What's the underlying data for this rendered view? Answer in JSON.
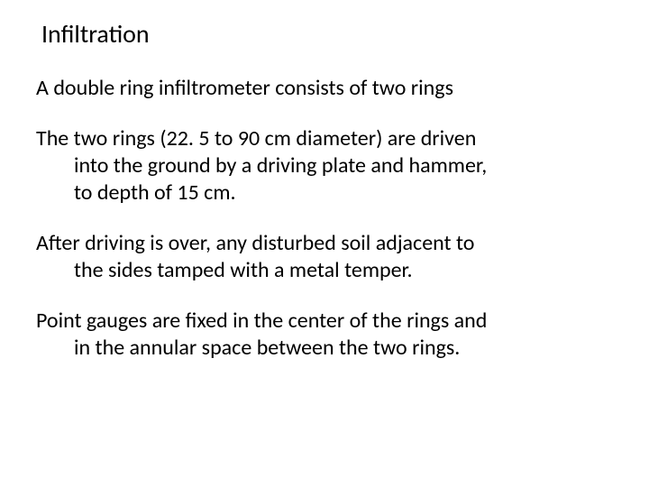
{
  "slide": {
    "title": "Infiltration",
    "p1": "A double ring infiltrometer consists of two rings",
    "p2_l1": "The two rings (22. 5 to 90 cm diameter) are driven",
    "p2_l2": "into the ground by a driving plate and hammer,",
    "p2_l3": "to depth of 15 cm.",
    "p3_l1": "After driving is over, any disturbed soil adjacent to",
    "p3_l2": "the sides tamped with a metal temper.",
    "p4_l1": "Point gauges are fixed in the center of the rings and",
    "p4_l2": "in the annular space between the two rings."
  },
  "style": {
    "background_color": "#ffffff",
    "text_color": "#000000",
    "title_fontsize": 28,
    "body_fontsize": 24,
    "font_family": "Calibri"
  }
}
